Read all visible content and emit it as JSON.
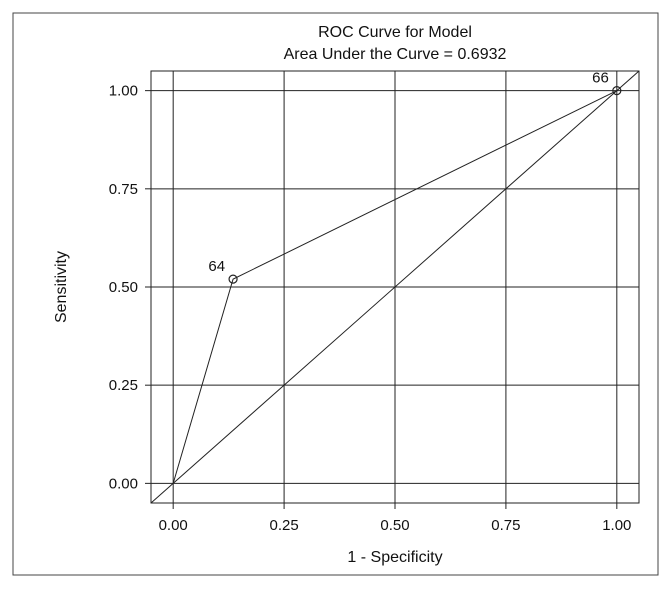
{
  "chart_data": {
    "type": "line",
    "title": "ROC Curve for Model",
    "subtitle": "Area Under the Curve = 0.6932",
    "xlabel": "1 - Specificity",
    "ylabel": "Sensitivity",
    "xlim": [
      -0.05,
      1.05
    ],
    "ylim": [
      -0.05,
      1.05
    ],
    "xticks": [
      0.0,
      0.25,
      0.5,
      0.75,
      1.0
    ],
    "yticks": [
      0.0,
      0.25,
      0.5,
      0.75,
      1.0
    ],
    "xtick_labels": [
      "0.00",
      "0.25",
      "0.50",
      "0.75",
      "1.00"
    ],
    "ytick_labels": [
      "0.00",
      "0.25",
      "0.50",
      "0.75",
      "1.00"
    ],
    "grid": true,
    "series": [
      {
        "x": [
          0.0,
          0.135,
          1.0
        ],
        "y": [
          0.0,
          0.52,
          1.0
        ],
        "markers": [
          {
            "x": 0.135,
            "y": 0.52,
            "label": "64"
          },
          {
            "x": 1.0,
            "y": 1.0,
            "label": "66"
          }
        ]
      },
      {
        "x": [
          -0.05,
          1.05
        ],
        "y": [
          -0.05,
          1.05
        ]
      }
    ]
  }
}
